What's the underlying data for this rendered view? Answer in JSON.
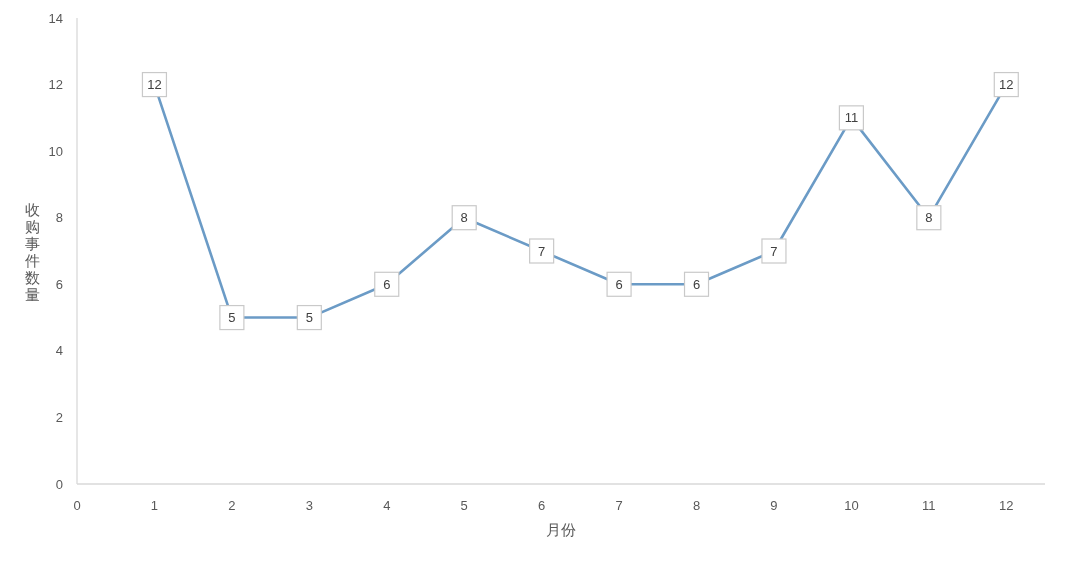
{
  "chart_data": {
    "type": "line",
    "xlabel": "月份",
    "ylabel": "收购事件数量",
    "x": [
      1,
      2,
      3,
      4,
      5,
      6,
      7,
      8,
      9,
      10,
      11,
      12
    ],
    "series": [
      {
        "color": "#6b9bc6",
        "values": [
          12,
          5,
          5,
          6,
          8,
          7,
          6,
          6,
          7,
          11,
          8,
          12
        ]
      }
    ],
    "xlim": [
      0,
      12.5
    ],
    "xticks": [
      0,
      1,
      2,
      3,
      4,
      5,
      6,
      7,
      8,
      9,
      10,
      11,
      12
    ],
    "ylim": [
      0,
      14
    ],
    "yticks": [
      0,
      2,
      4,
      6,
      8,
      10,
      12,
      14
    ],
    "data_labels": true,
    "grid": false,
    "marker": "square",
    "line_style": "solid"
  }
}
